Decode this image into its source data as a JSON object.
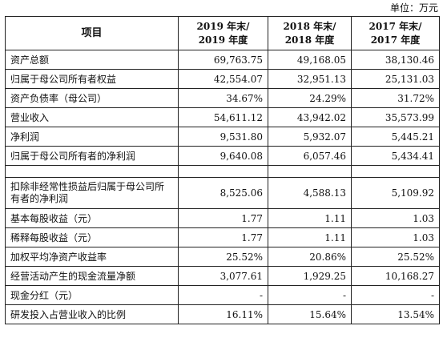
{
  "unit": "单位：万元",
  "headers": {
    "item": "项目",
    "y2019": [
      "2019 年末/",
      "2019 年度"
    ],
    "y2018": [
      "2018 年末/",
      "2018 年度"
    ],
    "y2017": [
      "2017 年末/",
      "2017 年度"
    ]
  },
  "rows": [
    {
      "label": "资产总额",
      "v2019": "69,763.75",
      "v2018": "49,168.05",
      "v2017": "38,130.46"
    },
    {
      "label": "归属于母公司所有者权益",
      "v2019": "42,554.07",
      "v2018": "32,951.13",
      "v2017": "25,131.03"
    },
    {
      "label": "资产负债率（母公司）",
      "v2019": "34.67%",
      "v2018": "24.29%",
      "v2017": "31.72%"
    },
    {
      "label": "营业收入",
      "v2019": "54,611.12",
      "v2018": "43,942.02",
      "v2017": "35,573.99"
    },
    {
      "label": "净利润",
      "v2019": "9,531.80",
      "v2018": "5,932.07",
      "v2017": "5,445.21"
    },
    {
      "label": "归属于母公司所有者的净利润",
      "v2019": "9,640.08",
      "v2018": "6,057.46",
      "v2017": "5,434.41"
    },
    {
      "label": "扣除非经常性损益后归属于母公司所有者的净利润",
      "v2019": "8,525.06",
      "v2018": "4,588.13",
      "v2017": "5,109.92"
    },
    {
      "label": "基本每股收益（元）",
      "v2019": "1.77",
      "v2018": "1.11",
      "v2017": "1.03"
    },
    {
      "label": "稀释每股收益（元）",
      "v2019": "1.77",
      "v2018": "1.11",
      "v2017": "1.03"
    },
    {
      "label": "加权平均净资产收益率",
      "v2019": "25.52%",
      "v2018": "20.86%",
      "v2017": "25.52%"
    },
    {
      "label": "经营活动产生的现金流量净额",
      "v2019": "3,077.61",
      "v2018": "1,929.25",
      "v2017": "10,168.27"
    },
    {
      "label": "现金分红（元）",
      "v2019": "-",
      "v2018": "-",
      "v2017": "-"
    },
    {
      "label": "研发投入占营业收入的比例",
      "v2019": "16.11%",
      "v2018": "15.64%",
      "v2017": "13.54%"
    }
  ]
}
